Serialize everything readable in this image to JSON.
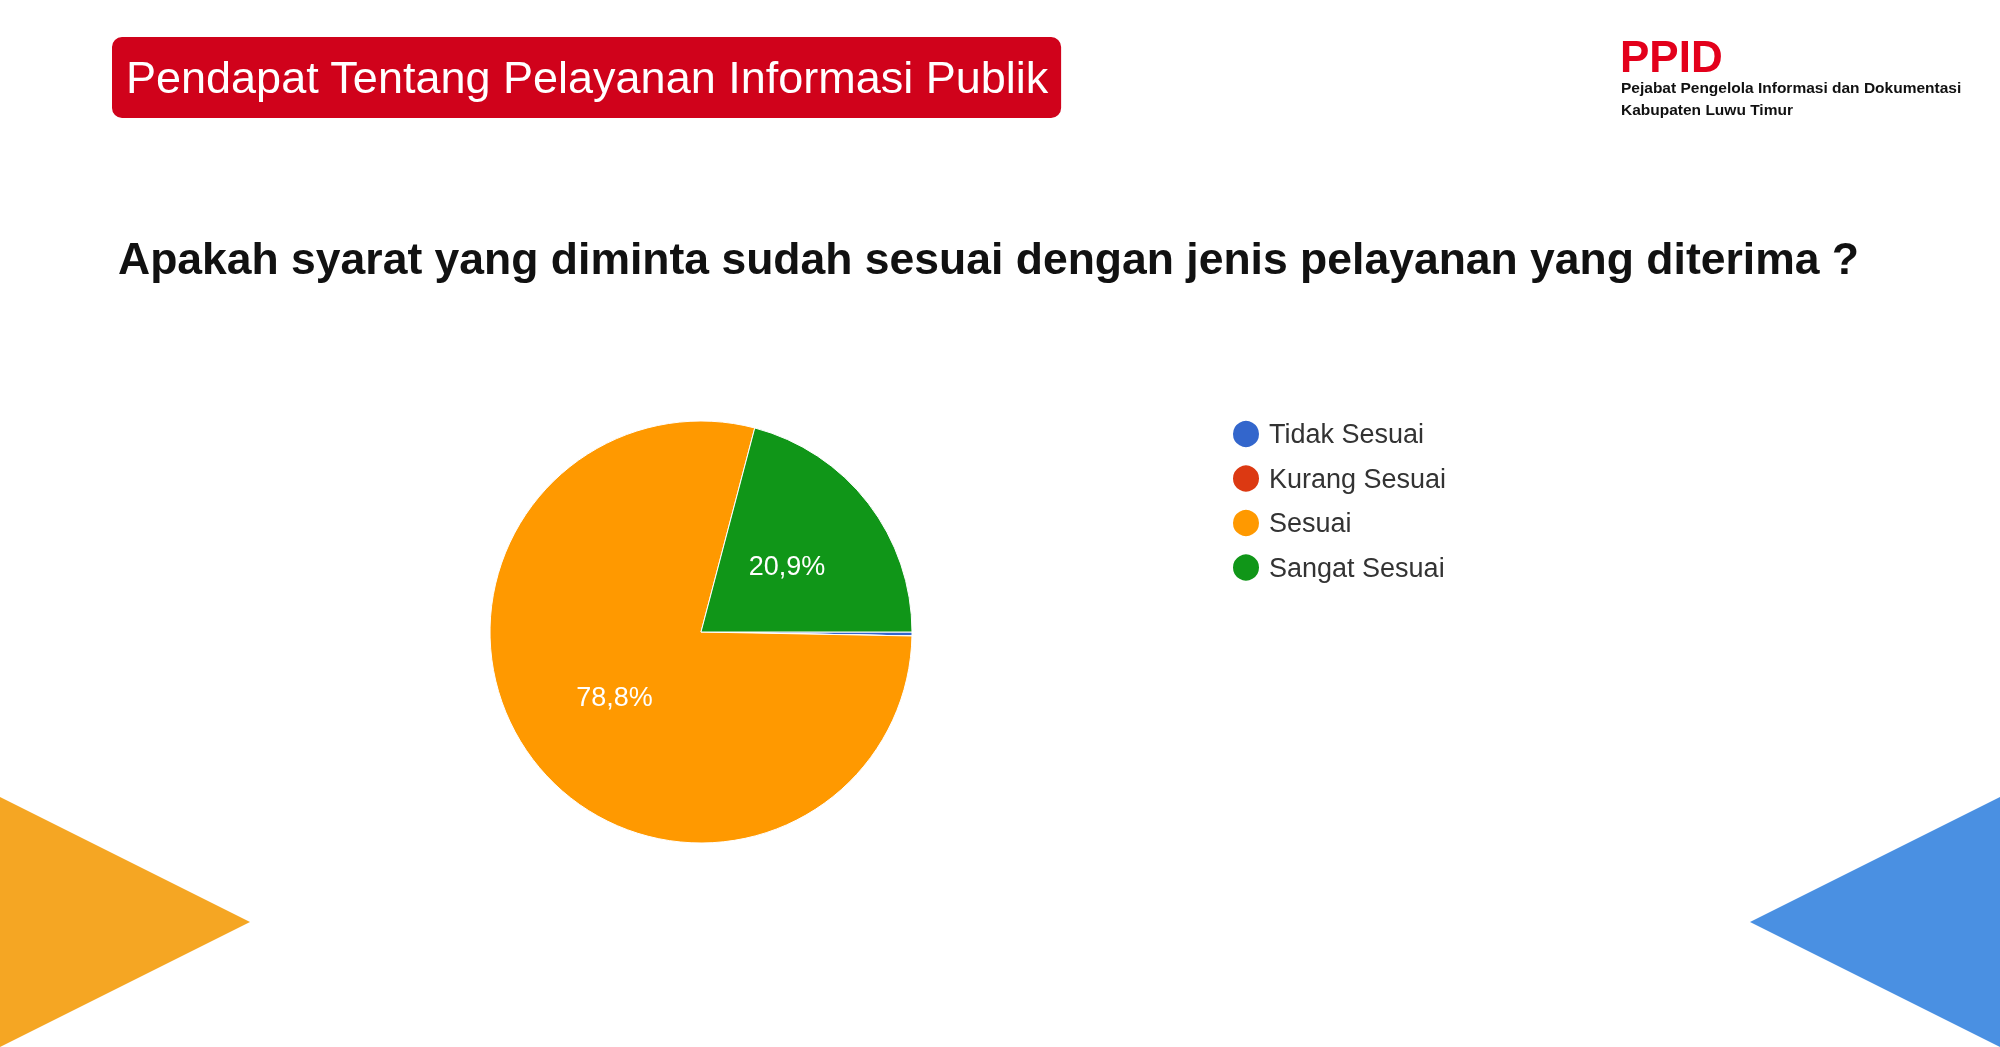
{
  "chart_data": {
    "type": "pie",
    "title": "Pendapat Tentang Pelayanan Informasi Publik",
    "subtitle": "Apakah syarat yang diminta sudah sesuai dengan jenis pelayanan yang diterima ?",
    "categories": [
      "Tidak Sesuai",
      "Kurang Sesuai",
      "Sesuai",
      "Sangat Sesuai"
    ],
    "values": [
      0.3,
      0,
      78.8,
      20.9
    ],
    "colors": [
      "#3366cc",
      "#dc3912",
      "#ff9900",
      "#109618"
    ],
    "value_labels": [
      null,
      null,
      "78,8%",
      "20,9%"
    ],
    "legend": "right",
    "annotations": [
      "PPID",
      "Pejabat Pengelola Informasi dan Dokumentasi",
      "Kabupaten Luwu Timur"
    ]
  }
}
